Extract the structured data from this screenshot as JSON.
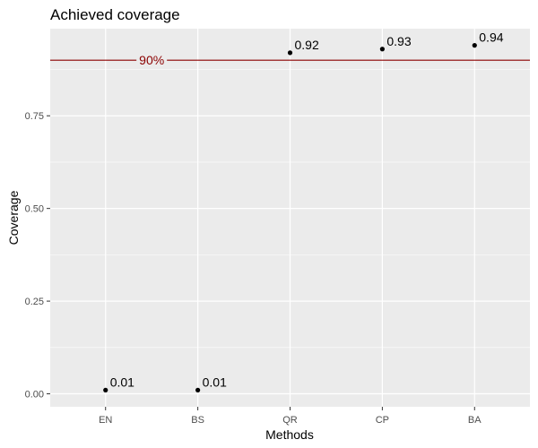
{
  "chart_data": {
    "type": "scatter",
    "title": "Achieved coverage",
    "xlabel": "Methods",
    "ylabel": "Coverage",
    "categories": [
      "EN",
      "BS",
      "QR",
      "CP",
      "BA"
    ],
    "values": [
      0.01,
      0.01,
      0.92,
      0.93,
      0.94
    ],
    "data_labels": [
      "0.01",
      "0.01",
      "0.92",
      "0.93",
      "0.94"
    ],
    "y_ticks": [
      0.0,
      0.25,
      0.5,
      0.75
    ],
    "y_tick_labels": [
      "0.00",
      "0.25",
      "0.50",
      "0.75"
    ],
    "ylim": [
      -0.035,
      0.985
    ],
    "reference_line": {
      "value": 0.9,
      "label": "90%",
      "color": "#8b0000"
    },
    "grid": true,
    "legend": "none",
    "colors": {
      "panel": "#ebebeb",
      "grid": "#ffffff",
      "point": "#000000"
    }
  }
}
